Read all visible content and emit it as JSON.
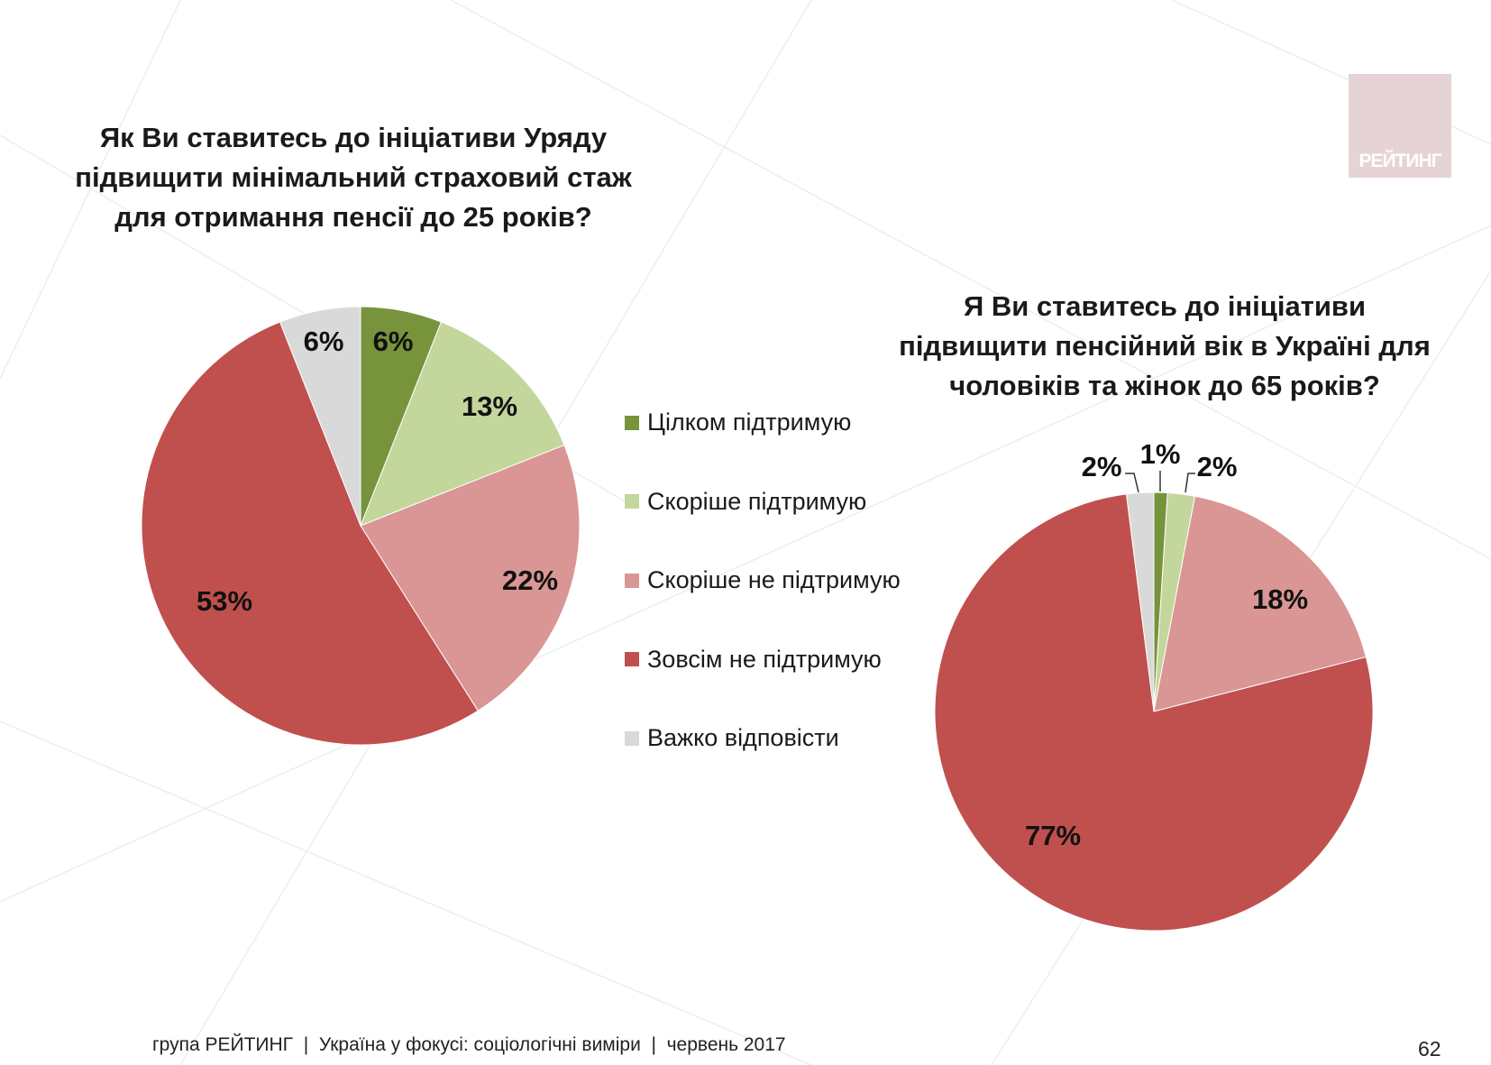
{
  "logo_text": "РЕЙТИНГ",
  "footer": {
    "text": "група РЕЙТИНГ  |  Україна у фокусі: соціологічні виміри  |  червень 2017",
    "page_number": "62"
  },
  "legend": [
    {
      "label": "Цілком підтримую",
      "color": "#77933C"
    },
    {
      "label": "Скоріше підтримую",
      "color": "#C3D69B"
    },
    {
      "label": "Скоріше не підтримую",
      "color": "#D99694"
    },
    {
      "label": "Зовсім не підтримую",
      "color": "#C0504D"
    },
    {
      "label": "Важко відповісти",
      "color": "#D9D9D9"
    }
  ],
  "chart_data": [
    {
      "type": "pie",
      "title_lines": [
        "Як Ви ставитесь до ініціативи Уряду",
        "підвищити мінімальний страховий стаж",
        "для отримання пенсії до 25 років?"
      ],
      "categories": [
        "Цілком підтримую",
        "Скоріше підтримую",
        "Скоріше не підтримую",
        "Зовсім не підтримую",
        "Важко відповісти"
      ],
      "values": [
        6,
        13,
        22,
        53,
        6
      ],
      "labels": [
        "6%",
        "13%",
        "22%",
        "53%",
        "6%"
      ]
    },
    {
      "type": "pie",
      "title_lines": [
        "Я Ви ставитесь до ініціативи",
        "підвищити пенсійний вік в Україні для",
        "чоловіків та жінок до 65 років?"
      ],
      "categories": [
        "Цілком підтримую",
        "Скоріше підтримую",
        "Скоріше не підтримую",
        "Зовсім не підтримую",
        "Важко відповісти"
      ],
      "values": [
        1,
        2,
        18,
        77,
        2
      ],
      "labels": [
        "1%",
        "2%",
        "18%",
        "77%",
        "2%"
      ]
    }
  ]
}
